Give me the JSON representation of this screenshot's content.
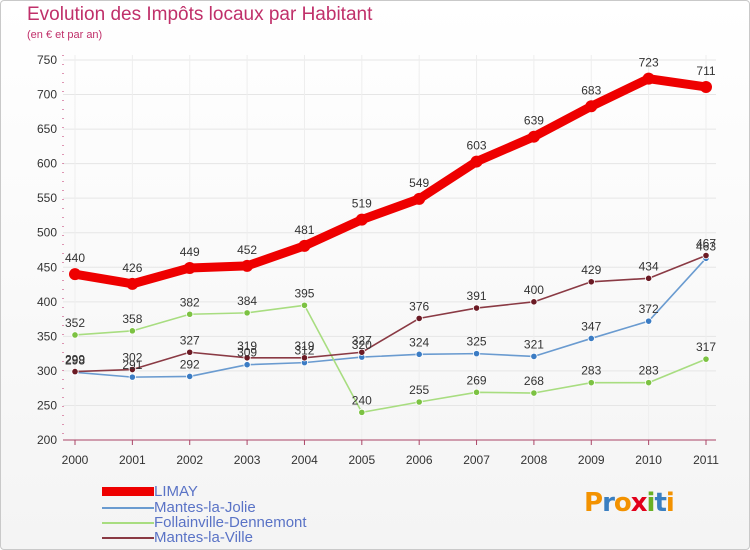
{
  "header": {
    "title": "Evolution des Impôts locaux par Habitant",
    "subtitle": "(en € et par an)"
  },
  "logo": {
    "text": "Proxiti",
    "colors": [
      "#f39200",
      "#3a7fc1",
      "#f39200",
      "#e2001a",
      "#6ab023",
      "#3a7fc1",
      "#f39200"
    ]
  },
  "chart_data": {
    "type": "line",
    "title": "Evolution des Impôts locaux par Habitant",
    "subtitle": "(en € et par an)",
    "xlabel": "",
    "ylabel": "",
    "categories": [
      "2000",
      "2001",
      "2002",
      "2003",
      "2004",
      "2005",
      "2006",
      "2007",
      "2008",
      "2009",
      "2010",
      "2011"
    ],
    "y_ticks": [
      200,
      250,
      300,
      350,
      400,
      450,
      500,
      550,
      600,
      650,
      700,
      750
    ],
    "ylim": [
      200,
      750
    ],
    "grid": true,
    "legend_position": "bottom-left",
    "series": [
      {
        "name": "LIMAY",
        "color": "#ee0000",
        "marker": "#ee0000",
        "thick": true,
        "values": [
          440,
          426,
          449,
          452,
          481,
          519,
          549,
          603,
          639,
          683,
          723,
          711
        ],
        "labels": [
          "440",
          "426",
          "449",
          "452",
          "481",
          "519",
          "549",
          "603",
          "639",
          "683",
          "723",
          "711"
        ]
      },
      {
        "name": "Mantes-la-Jolie",
        "color": "#6a9bd0",
        "marker": "#3b7cc4",
        "thick": false,
        "values": [
          298,
          291,
          292,
          309,
          312,
          320,
          324,
          325,
          321,
          347,
          372,
          463
        ],
        "labels": [
          "298",
          "291",
          "292",
          "309",
          "312",
          "320",
          "324",
          "325",
          "321",
          "347",
          "372",
          "463"
        ]
      },
      {
        "name": "Follainville-Dennemont",
        "color": "#a8dd80",
        "marker": "#7cc242",
        "thick": false,
        "values": [
          352,
          358,
          382,
          384,
          395,
          240,
          255,
          269,
          268,
          283,
          283,
          317
        ],
        "labels": [
          "352",
          "358",
          "382",
          "384",
          "395",
          "240",
          "255",
          "269",
          "268",
          "283",
          "283",
          "317"
        ]
      },
      {
        "name": "Mantes-la-Ville",
        "color": "#8a3a44",
        "marker": "#6b1a24",
        "thick": false,
        "values": [
          299,
          302,
          327,
          319,
          319,
          327,
          376,
          391,
          400,
          429,
          434,
          467
        ],
        "labels": [
          "299",
          "302",
          "327",
          "319",
          "319",
          "327",
          "376",
          "391",
          "400",
          "429",
          "434",
          "467"
        ]
      }
    ]
  }
}
